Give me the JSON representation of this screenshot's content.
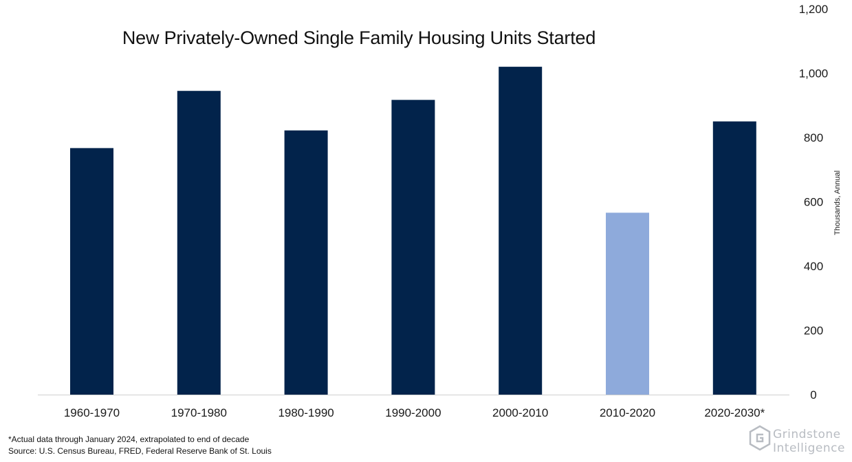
{
  "chart_data": {
    "type": "bar",
    "title": "New Privately-Owned Single Family Housing Units Started",
    "categories": [
      "1960-1970",
      "1970-1980",
      "1980-1990",
      "1990-2000",
      "2000-2010",
      "2010-2020",
      "2020-2030*"
    ],
    "values": [
      767,
      945,
      822,
      917,
      1020,
      566,
      850
    ],
    "bar_colors": [
      "#02234b",
      "#02234b",
      "#02234b",
      "#02234b",
      "#02234b",
      "#8eaadb",
      "#02234b"
    ],
    "ylabel": "Thousands, Annual",
    "ylim": [
      0,
      1200
    ],
    "yticks": [
      0,
      200,
      400,
      600,
      800,
      1000,
      1200
    ],
    "ytick_labels": [
      "0",
      "200",
      "400",
      "600",
      "800",
      "1,000",
      "1,200"
    ],
    "y_axis_position": "right",
    "grid": false,
    "legend": "none"
  },
  "footnote": "*Actual data through January 2024, extrapolated to end of decade",
  "source": "Source: U.S. Census Bureau, FRED, Federal Reserve Bank of St. Louis",
  "logo": {
    "line1": "Grindstone",
    "line2": "Intelligence",
    "icon": "grindstone-hexagon-icon"
  }
}
